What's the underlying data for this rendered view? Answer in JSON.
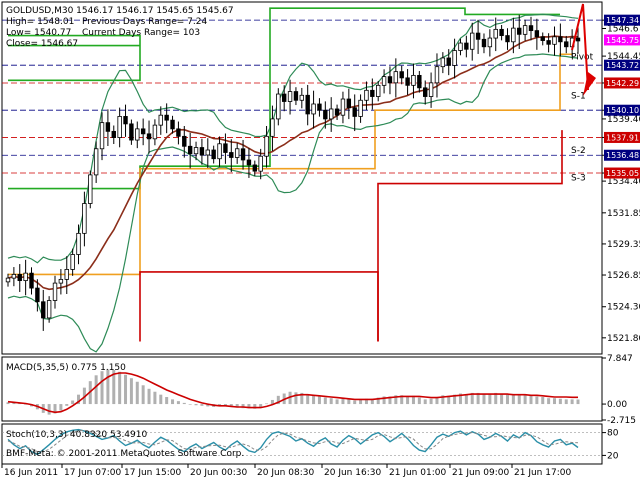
{
  "header": {
    "symbol_line": "GOLDUSD,M30  1546.17 1546.17 1545.65 1545.67",
    "high_line": "High= 1548.01",
    "prev_range_line": "Previous Days Range= 7.24",
    "low_line": "Low= 1540.77",
    "curr_range_line": "Current Days Range= 103",
    "close_line": "Close= 1546.67"
  },
  "colors": {
    "background": "#ffffff",
    "candle": "#000000",
    "bollinger": "#2e8b57",
    "ma": "#8b2e1a",
    "channel_green": "#22aa22",
    "channel_orange": "#f0a020",
    "channel_red": "#cc0000",
    "dash_navy": "#000080",
    "dash_red": "#cc0000",
    "macd_hist": "#b0b0b0",
    "macd_signal": "#cc0000",
    "stoch_main": "#2a8fa8"
  },
  "chart_data": [
    {
      "type": "candlestick",
      "title": "GOLDUSD,M30",
      "ylim": [
        1520.5,
        1548.8
      ],
      "y_ticks": [
        "1547.34",
        "1546.67",
        "1544.45",
        "1542.29",
        "1540.10",
        "1539.40",
        "1537.91",
        "1536.48",
        "1535.05",
        "1534.40",
        "1531.85",
        "1529.35",
        "1526.85",
        "1524.30",
        "1521.80"
      ],
      "x_labels": [
        "16 Jun 2011",
        "17 Jun 07:00",
        "17 Jun 15:00",
        "20 Jun 00:30",
        "20 Jun 08:30",
        "20 Jun 16:30",
        "21 Jun 01:00",
        "21 Jun 09:00",
        "21 Jun 17:00"
      ],
      "close": [
        1526.6,
        1526.9,
        1526.4,
        1527.0,
        1525.8,
        1524.7,
        1523.4,
        1524.8,
        1526.2,
        1526.5,
        1527.3,
        1528.5,
        1530.2,
        1532.6,
        1534.9,
        1537.0,
        1539.1,
        1538.4,
        1537.9,
        1539.6,
        1539.0,
        1537.7,
        1538.6,
        1538.2,
        1537.8,
        1538.9,
        1539.7,
        1539.3,
        1538.6,
        1538.0,
        1537.2,
        1536.6,
        1537.1,
        1536.5,
        1536.9,
        1536.2,
        1537.4,
        1536.7,
        1536.3,
        1537.0,
        1536.1,
        1535.7,
        1535.2,
        1536.4,
        1538.0,
        1539.4,
        1541.4,
        1540.8,
        1541.6,
        1540.9,
        1541.3,
        1539.8,
        1540.6,
        1540.1,
        1539.4,
        1540.2,
        1539.7,
        1541.0,
        1540.3,
        1539.6,
        1540.9,
        1541.7,
        1541.2,
        1542.1,
        1542.8,
        1542.3,
        1543.2,
        1542.7,
        1542.1,
        1542.9,
        1541.9,
        1541.2,
        1542.3,
        1543.6,
        1544.3,
        1543.7,
        1544.9,
        1545.5,
        1545.0,
        1546.3,
        1545.8,
        1545.2,
        1545.9,
        1546.6,
        1546.1,
        1545.6,
        1546.7,
        1546.2,
        1546.9,
        1546.5,
        1546.0,
        1545.7,
        1545.4,
        1546.0,
        1545.6,
        1545.2,
        1545.9,
        1545.67
      ],
      "range_levels": {
        "upper_green": 1546.1,
        "upper_orange": 1542.0,
        "mid": 1540.1
      },
      "price_tags": [
        {
          "label": "1547.34",
          "value": 1547.34,
          "kind": "navy"
        },
        {
          "label": "1545.75",
          "value": 1545.75,
          "kind": "magenta"
        },
        {
          "label": "1543.72",
          "value": 1543.72,
          "kind": "navy"
        },
        {
          "label": "1542.29",
          "value": 1542.29,
          "kind": "red"
        },
        {
          "label": "1540.10",
          "value": 1540.1,
          "kind": "navy"
        },
        {
          "label": "1537.91",
          "value": 1537.91,
          "kind": "red"
        },
        {
          "label": "1536.48",
          "value": 1536.48,
          "kind": "navy"
        },
        {
          "label": "1535.05",
          "value": 1535.05,
          "kind": "red"
        }
      ],
      "level_labels": [
        {
          "label": "Pivot",
          "value": 1544.4
        },
        {
          "label": "S-1",
          "value": 1541.3
        },
        {
          "label": "S-2",
          "value": 1536.9
        },
        {
          "label": "S-3",
          "value": 1534.7
        }
      ]
    },
    {
      "type": "bar",
      "title": "MACD(5,35,5) 0.775 1.150",
      "ylim": [
        -2.715,
        7.847
      ],
      "y_ticks": [
        "7.847",
        "0.00",
        "-2.715"
      ],
      "histogram": [
        0.3,
        0.2,
        0.1,
        0.0,
        -0.4,
        -0.9,
        -1.5,
        -1.8,
        -1.6,
        -1.1,
        -0.3,
        0.6,
        1.6,
        2.8,
        3.9,
        4.9,
        5.6,
        5.9,
        5.8,
        5.5,
        5.0,
        4.4,
        3.8,
        3.2,
        2.6,
        2.1,
        1.6,
        1.2,
        0.8,
        0.5,
        0.2,
        0.0,
        -0.2,
        -0.3,
        -0.4,
        -0.5,
        -0.4,
        -0.4,
        -0.5,
        -0.6,
        -0.7,
        -0.7,
        -0.8,
        -0.5,
        0.1,
        0.7,
        1.4,
        1.8,
        2.1,
        2.0,
        1.9,
        1.6,
        1.5,
        1.3,
        1.1,
        1.0,
        0.8,
        0.9,
        0.8,
        0.6,
        0.7,
        0.9,
        0.9,
        1.1,
        1.3,
        1.3,
        1.5,
        1.5,
        1.3,
        1.4,
        1.1,
        0.8,
        0.9,
        1.2,
        1.5,
        1.4,
        1.6,
        1.8,
        1.7,
        1.9,
        1.9,
        1.7,
        1.7,
        1.9,
        1.8,
        1.6,
        1.7,
        1.6,
        1.6,
        1.5,
        1.3,
        1.2,
        1.0,
        1.0,
        0.9,
        0.8,
        0.8,
        0.775
      ],
      "signal": [
        0.4,
        0.3,
        0.2,
        0.1,
        -0.1,
        -0.4,
        -0.8,
        -1.2,
        -1.4,
        -1.3,
        -0.9,
        -0.3,
        0.4,
        1.2,
        2.1,
        3.0,
        3.9,
        4.6,
        5.1,
        5.3,
        5.3,
        5.1,
        4.8,
        4.4,
        3.9,
        3.4,
        2.9,
        2.4,
        2.0,
        1.6,
        1.2,
        0.8,
        0.5,
        0.2,
        0.0,
        -0.2,
        -0.3,
        -0.3,
        -0.4,
        -0.5,
        -0.5,
        -0.6,
        -0.6,
        -0.6,
        -0.4,
        -0.1,
        0.3,
        0.8,
        1.2,
        1.5,
        1.6,
        1.6,
        1.5,
        1.4,
        1.3,
        1.2,
        1.1,
        1.0,
        0.9,
        0.8,
        0.8,
        0.8,
        0.8,
        0.9,
        1.0,
        1.1,
        1.2,
        1.3,
        1.3,
        1.3,
        1.3,
        1.2,
        1.1,
        1.1,
        1.2,
        1.3,
        1.4,
        1.5,
        1.6,
        1.7,
        1.7,
        1.7,
        1.7,
        1.7,
        1.7,
        1.7,
        1.6,
        1.6,
        1.6,
        1.5,
        1.5,
        1.4,
        1.3,
        1.2,
        1.2,
        1.2,
        1.15,
        1.15
      ]
    },
    {
      "type": "line",
      "title": "Stoch(10,3,3) 40.8320 53.4910",
      "ylim": [
        0,
        100
      ],
      "y_ticks": [
        "80",
        "20"
      ],
      "main": [
        62,
        48,
        38,
        45,
        30,
        22,
        35,
        48,
        62,
        74,
        82,
        86,
        88,
        84,
        78,
        70,
        62,
        66,
        72,
        58,
        46,
        52,
        60,
        48,
        40,
        55,
        68,
        60,
        48,
        36,
        30,
        42,
        50,
        38,
        46,
        54,
        42,
        34,
        48,
        58,
        44,
        32,
        28,
        40,
        62,
        78,
        82,
        76,
        70,
        58,
        64,
        52,
        44,
        58,
        66,
        50,
        42,
        60,
        72,
        64,
        50,
        62,
        74,
        80,
        70,
        56,
        66,
        78,
        64,
        46,
        34,
        30,
        48,
        68,
        76,
        70,
        80,
        84,
        74,
        82,
        76,
        62,
        68,
        78,
        70,
        58,
        74,
        66,
        80,
        72,
        56,
        48,
        42,
        58,
        62,
        48,
        52,
        40.832
      ],
      "signal": [
        58,
        52,
        44,
        42,
        38,
        30,
        30,
        36,
        48,
        60,
        72,
        80,
        85,
        86,
        83,
        77,
        70,
        66,
        67,
        65,
        59,
        53,
        53,
        54,
        50,
        48,
        54,
        61,
        59,
        48,
        38,
        36,
        41,
        43,
        45,
        46,
        47,
        43,
        41,
        47,
        50,
        45,
        35,
        33,
        43,
        60,
        74,
        79,
        76,
        68,
        64,
        58,
        53,
        51,
        56,
        58,
        53,
        51,
        58,
        65,
        62,
        59,
        62,
        72,
        75,
        69,
        64,
        67,
        70,
        63,
        48,
        37,
        37,
        49,
        64,
        71,
        75,
        78,
        79,
        80,
        77,
        73,
        69,
        69,
        72,
        69,
        67,
        66,
        73,
        73,
        69,
        59,
        49,
        49,
        54,
        56,
        54,
        53.491
      ]
    }
  ]
}
